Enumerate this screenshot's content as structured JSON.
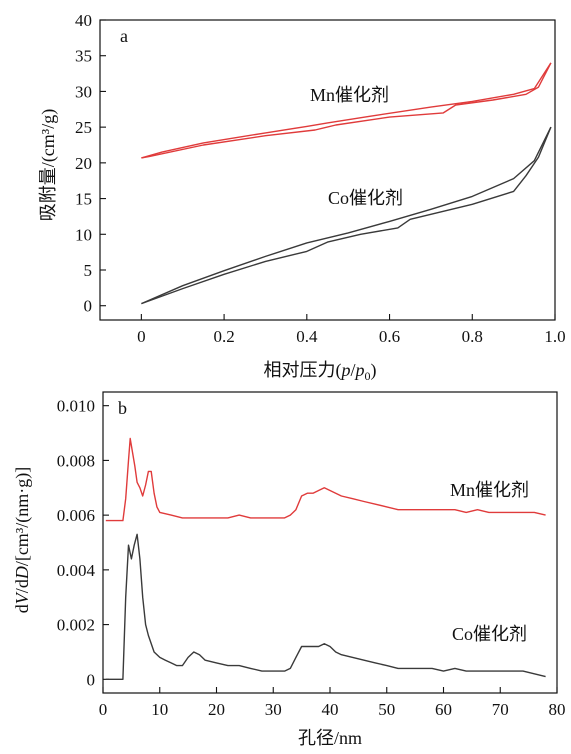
{
  "chart_data": [
    {
      "type": "line",
      "panel_label": "a",
      "xlabel": "相对压力(p/p0)",
      "ylabel": "吸附量/(cm³/g)",
      "xlim": [
        -0.1,
        1.0
      ],
      "ylim": [
        -2,
        40
      ],
      "xticks": [
        "0",
        "0.2",
        "0.4",
        "0.6",
        "0.8",
        "1.0"
      ],
      "yticks": [
        "0",
        "5",
        "10",
        "15",
        "20",
        "25",
        "30",
        "35",
        "40"
      ],
      "grid": false,
      "series": [
        {
          "name": "Mn催化剂",
          "color": "#e03b3b",
          "curves": [
            {
              "x": [
                0,
                0.05,
                0.15,
                0.3,
                0.4,
                0.45,
                0.55,
                0.7,
                0.8,
                0.9,
                0.95,
                0.99
              ],
              "y": [
                20.7,
                21.5,
                22.8,
                24.2,
                25.1,
                25.6,
                26.5,
                27.8,
                28.6,
                29.6,
                30.4,
                34.0
              ]
            },
            {
              "x": [
                0.99,
                0.96,
                0.93,
                0.85,
                0.76,
                0.73,
                0.6,
                0.47,
                0.42,
                0.3,
                0.15,
                0.02,
                0
              ],
              "y": [
                34.0,
                30.6,
                29.6,
                28.8,
                28.1,
                27.0,
                26.4,
                25.3,
                24.6,
                23.8,
                22.5,
                20.9,
                20.7
              ]
            }
          ]
        },
        {
          "name": "Co催化剂",
          "color": "#3a3a3a",
          "curves": [
            {
              "x": [
                0,
                0.1,
                0.2,
                0.3,
                0.4,
                0.5,
                0.6,
                0.7,
                0.8,
                0.9,
                0.95,
                0.99
              ],
              "y": [
                0.3,
                2.8,
                4.9,
                6.9,
                8.8,
                10.2,
                11.8,
                13.5,
                15.3,
                17.8,
                20.3,
                25.0
              ]
            },
            {
              "x": [
                0.99,
                0.96,
                0.93,
                0.9,
                0.8,
                0.7,
                0.65,
                0.62,
                0.53,
                0.45,
                0.4,
                0.3,
                0.2,
                0.1,
                0
              ],
              "y": [
                25.0,
                20.8,
                18.2,
                16.0,
                14.2,
                12.8,
                12.1,
                10.9,
                10.0,
                8.9,
                7.6,
                6.2,
                4.4,
                2.4,
                0.3
              ]
            }
          ]
        }
      ],
      "series_labels": [
        "Mn催化剂",
        "Co催化剂"
      ]
    },
    {
      "type": "line",
      "panel_label": "b",
      "xlabel": "孔径/nm",
      "ylabel": "dV/dD/[cm³/(nm·g)]",
      "xlim": [
        0,
        80
      ],
      "ylim": [
        -0.0005,
        0.0105
      ],
      "xticks": [
        "0",
        "10",
        "20",
        "30",
        "40",
        "50",
        "60",
        "70",
        "80"
      ],
      "yticks": [
        "0",
        "0.002",
        "0.004",
        "0.006",
        "0.008",
        "0.010"
      ],
      "grid": false,
      "series": [
        {
          "name": "Mn催化剂",
          "color": "#e03b3b",
          "x": [
            0.5,
            3.5,
            4.0,
            4.5,
            4.8,
            5.2,
            5.6,
            6.0,
            6.5,
            7.0,
            7.5,
            8.0,
            8.5,
            9.0,
            9.5,
            10,
            12,
            14,
            16,
            18,
            20,
            22,
            24,
            26,
            28,
            30,
            32,
            33,
            34,
            35,
            36,
            37,
            38,
            39,
            40,
            41,
            42,
            44,
            46,
            48,
            50,
            52,
            54,
            56,
            58,
            60,
            62,
            64,
            66,
            68,
            70,
            72,
            74,
            76,
            78
          ],
          "y": [
            0.0058,
            0.0058,
            0.0066,
            0.008,
            0.0088,
            0.0083,
            0.0078,
            0.0072,
            0.007,
            0.0067,
            0.0071,
            0.0076,
            0.0076,
            0.0068,
            0.0063,
            0.0061,
            0.006,
            0.0059,
            0.0059,
            0.0059,
            0.0059,
            0.0059,
            0.006,
            0.0059,
            0.0059,
            0.0059,
            0.0059,
            0.006,
            0.0062,
            0.0067,
            0.0068,
            0.0068,
            0.0069,
            0.007,
            0.0069,
            0.0068,
            0.0067,
            0.0066,
            0.0065,
            0.0064,
            0.0063,
            0.0062,
            0.0062,
            0.0062,
            0.0062,
            0.0062,
            0.0062,
            0.0061,
            0.0062,
            0.0061,
            0.0061,
            0.0061,
            0.0061,
            0.0061,
            0.006
          ]
        },
        {
          "name": "Co催化剂",
          "color": "#3a3a3a",
          "x": [
            0.5,
            3.5,
            4.0,
            4.5,
            5.0,
            5.5,
            6.0,
            6.5,
            7.0,
            7.5,
            8.0,
            9.0,
            10,
            11,
            12,
            13,
            14,
            15,
            16,
            17,
            18,
            20,
            22,
            24,
            26,
            28,
            30,
            32,
            33,
            34,
            35,
            36,
            37,
            38,
            39,
            40,
            41,
            42,
            44,
            46,
            48,
            50,
            52,
            54,
            56,
            58,
            60,
            62,
            64,
            66,
            68,
            70,
            72,
            74,
            76,
            78
          ],
          "y": [
            0,
            0,
            0.003,
            0.0049,
            0.0044,
            0.0049,
            0.0053,
            0.0044,
            0.003,
            0.002,
            0.0016,
            0.001,
            0.0008,
            0.0007,
            0.0006,
            0.0005,
            0.0005,
            0.0008,
            0.001,
            0.0009,
            0.0007,
            0.0006,
            0.0005,
            0.0005,
            0.0004,
            0.0003,
            0.0003,
            0.0003,
            0.0004,
            0.0008,
            0.0012,
            0.0012,
            0.0012,
            0.0012,
            0.0013,
            0.0012,
            0.001,
            0.0009,
            0.0008,
            0.0007,
            0.0006,
            0.0005,
            0.0004,
            0.0004,
            0.0004,
            0.0004,
            0.0003,
            0.0004,
            0.0003,
            0.0003,
            0.0003,
            0.0003,
            0.0003,
            0.0003,
            0.0002,
            0.0001
          ]
        }
      ],
      "series_labels": [
        "Mn催化剂",
        "Co催化剂"
      ]
    }
  ]
}
